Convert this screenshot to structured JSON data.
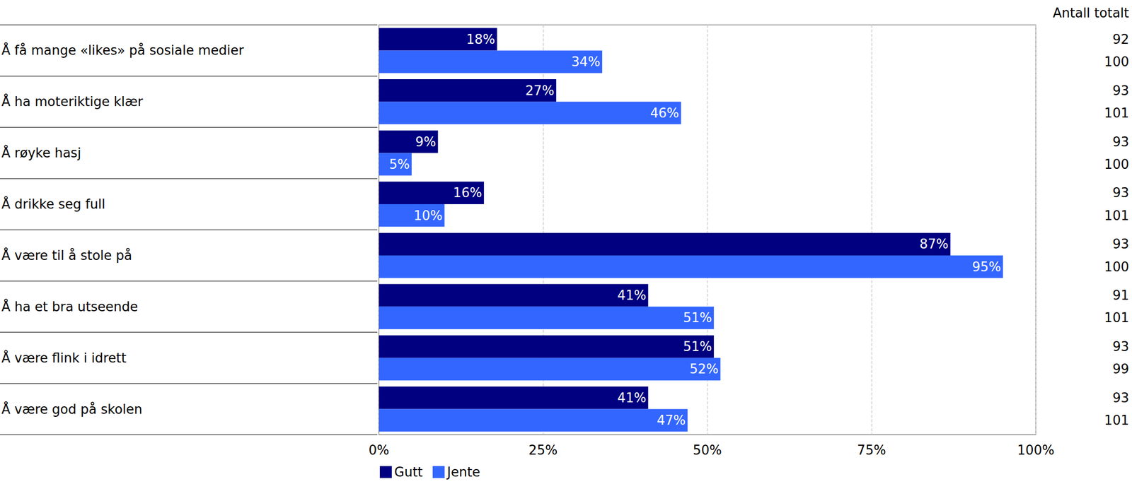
{
  "chart_data": {
    "type": "bar",
    "orientation": "horizontal",
    "categories": [
      "Å få mange «likes» på sosiale medier",
      "Å ha moteriktige klær",
      "Å røyke hasj",
      "Å drikke seg full",
      "Å være til å stole på",
      "Å ha et bra utseende",
      "Å være flink i idrett",
      "Å være god på skolen"
    ],
    "series": [
      {
        "name": "Gutt",
        "color": "#000080",
        "values": [
          18,
          27,
          9,
          16,
          87,
          41,
          51,
          41
        ],
        "value_labels": [
          "18%",
          "27%",
          "9%",
          "16%",
          "87%",
          "41%",
          "51%",
          "41%"
        ],
        "counts": [
          92,
          93,
          93,
          93,
          93,
          91,
          93,
          93
        ]
      },
      {
        "name": "Jente",
        "color": "#3366ff",
        "values": [
          34,
          46,
          5,
          10,
          95,
          51,
          52,
          47
        ],
        "value_labels": [
          "34%",
          "46%",
          "5%",
          "10%",
          "95%",
          "51%",
          "52%",
          "47%"
        ],
        "counts": [
          100,
          101,
          100,
          101,
          100,
          101,
          99,
          101
        ]
      }
    ],
    "counts_title": "Antall totalt",
    "xlim": [
      0,
      100
    ],
    "xticks": [
      {
        "value": 0,
        "label": "0%"
      },
      {
        "value": 25,
        "label": "25%"
      },
      {
        "value": 50,
        "label": "50%"
      },
      {
        "value": 75,
        "label": "75%"
      },
      {
        "value": 100,
        "label": "100%"
      }
    ],
    "grid": true,
    "data_labels": true,
    "legend": "bottom"
  }
}
